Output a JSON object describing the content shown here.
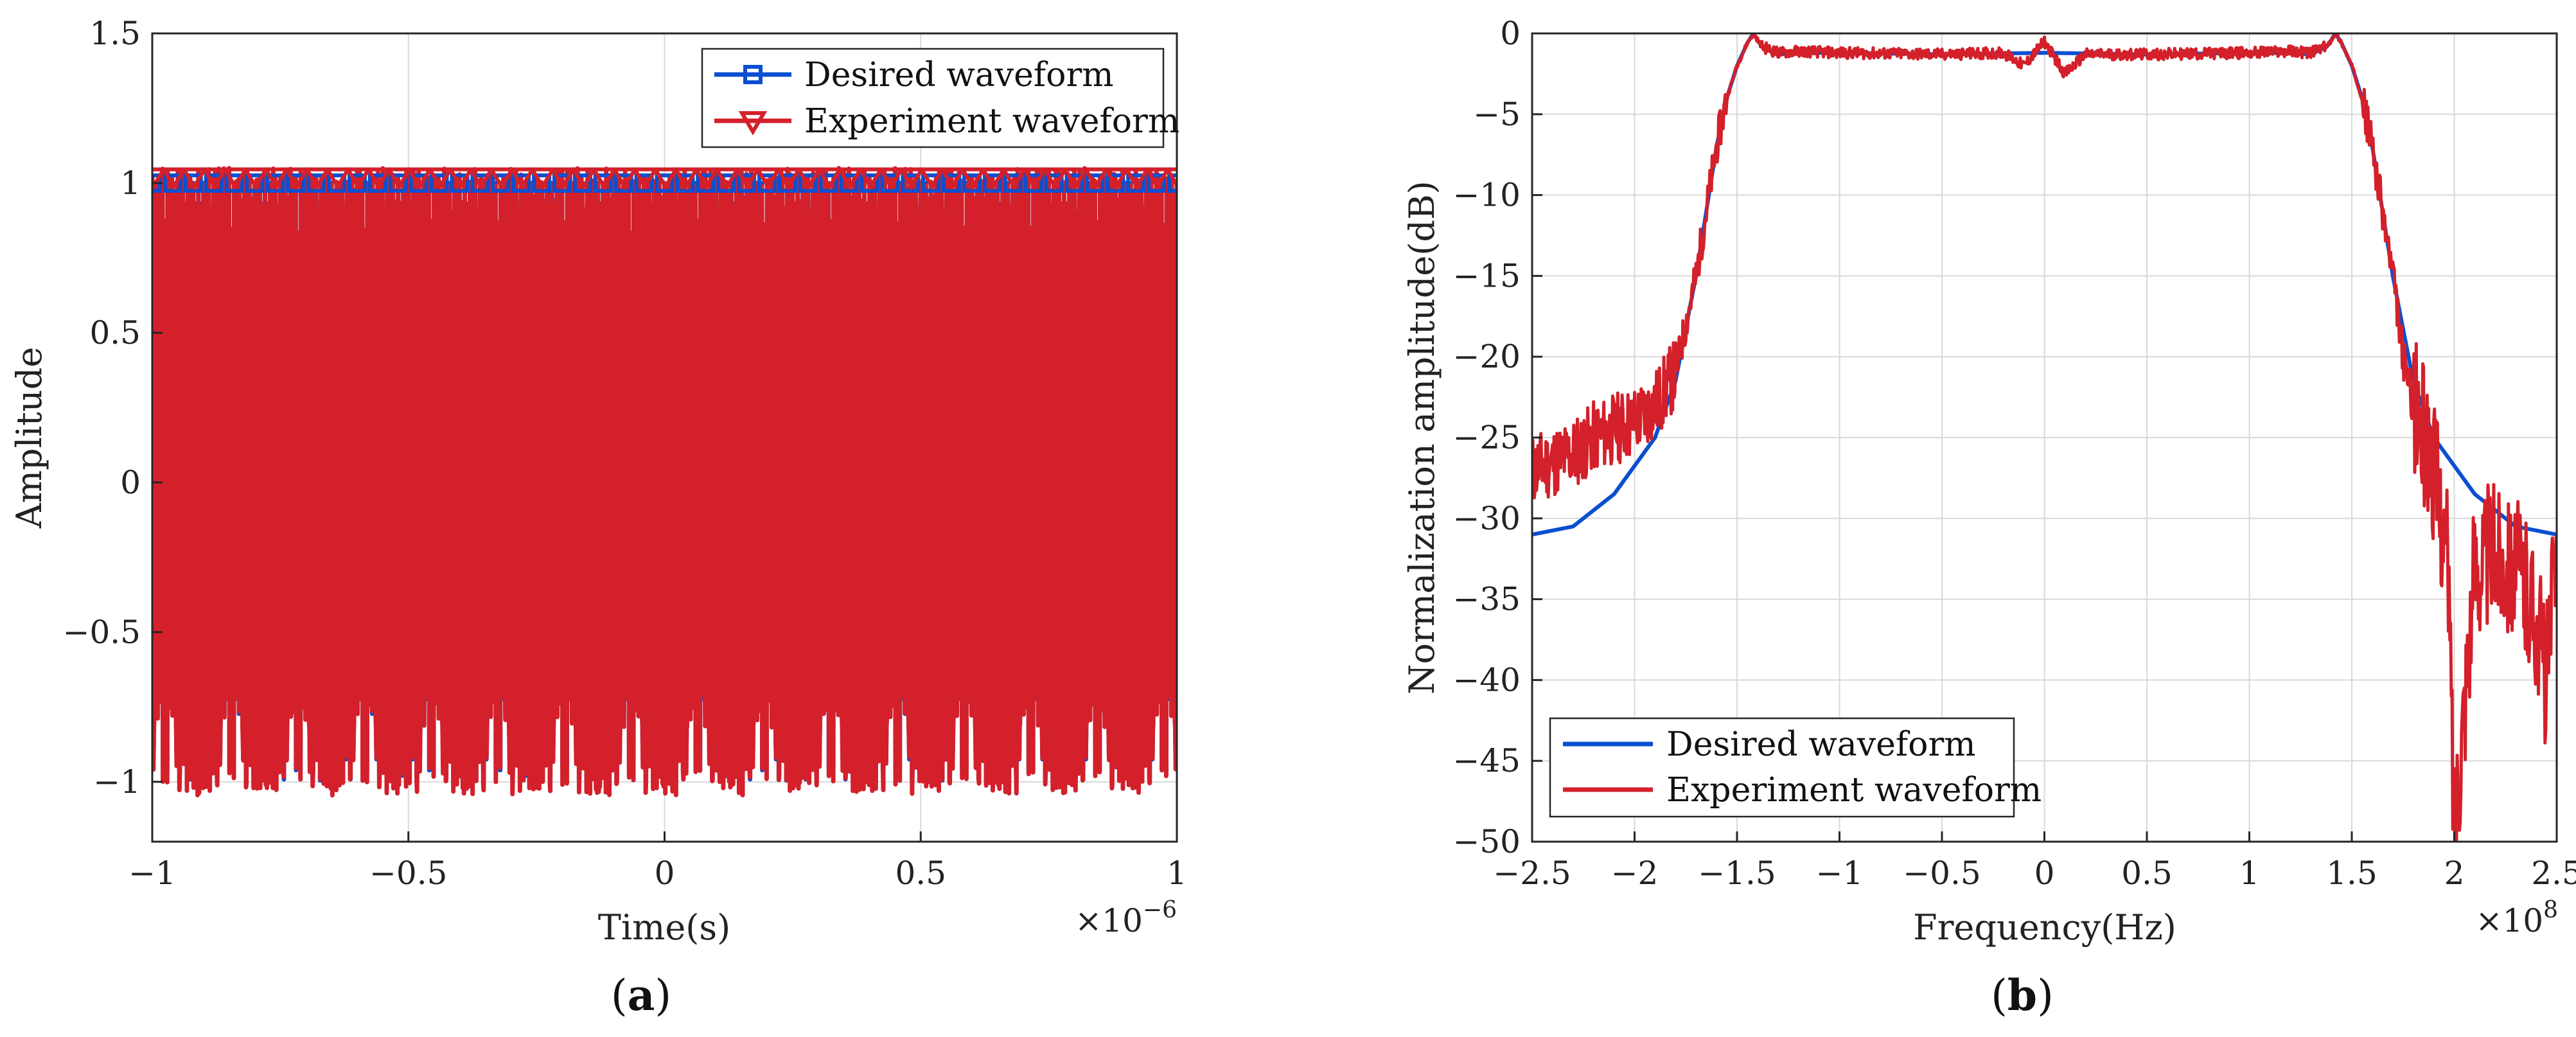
{
  "colors": {
    "desired": "#0a4fd0",
    "experiment": "#d3202a"
  },
  "chart_data": [
    {
      "type": "line",
      "panel_label_prefix": "(",
      "panel_label_letter": "a",
      "panel_label_suffix": ")",
      "title": "",
      "xlabel": "Time(s)",
      "ylabel": "Amplitude",
      "x_exponent_base": "×10",
      "x_exponent_power": "−6",
      "xlim": [
        -1,
        1
      ],
      "ylim": [
        -1.2,
        1.5
      ],
      "x_ticks": [
        -1,
        -0.5,
        0,
        0.5,
        1
      ],
      "x_tick_labels": [
        "−1",
        "−0.5",
        "0",
        "0.5",
        "1"
      ],
      "y_ticks": [
        -1,
        -0.5,
        0,
        0.5,
        1,
        1.5
      ],
      "y_tick_labels": [
        "−1",
        "−0.5",
        "0",
        "0.5",
        "1",
        "1.5"
      ],
      "grid": true,
      "legend_position": "top-right",
      "signal": "linear FM chirp, instantaneous frequency 0 at t=0 rising to about 1.5e8 Hz at |t|=1e-6 s",
      "series": [
        {
          "name": "Desired waveform",
          "color": "#0a4fd0",
          "marker": "square",
          "amplitude": 1.0
        },
        {
          "name": "Experiment waveform",
          "color": "#d3202a",
          "marker": "triangle-down",
          "amplitude": 1.02
        }
      ]
    },
    {
      "type": "line",
      "panel_label_prefix": "(",
      "panel_label_letter": "b",
      "panel_label_suffix": ")",
      "title": "",
      "xlabel": "Frequency(Hz)",
      "ylabel": "Normalization amplitude(dB)",
      "x_exponent_base": "×10",
      "x_exponent_power": "8",
      "xlim": [
        -2.5,
        2.5
      ],
      "ylim": [
        -50,
        0
      ],
      "x_ticks": [
        -2.5,
        -2,
        -1.5,
        -1,
        -0.5,
        0,
        0.5,
        1,
        1.5,
        2,
        2.5
      ],
      "x_tick_labels": [
        "−2.5",
        "−2",
        "−1.5",
        "−1",
        "−0.5",
        "0",
        "0.5",
        "1",
        "1.5",
        "2",
        "2.5"
      ],
      "y_ticks": [
        0,
        -5,
        -10,
        -15,
        -20,
        -25,
        -30,
        -35,
        -40,
        -45,
        -50
      ],
      "y_tick_labels": [
        "0",
        "−5",
        "−10",
        "−15",
        "−20",
        "−25",
        "−30",
        "−35",
        "−40",
        "−45",
        "−50"
      ],
      "grid": true,
      "legend_position": "bottom-left",
      "series": [
        {
          "name": "Desired waveform",
          "color": "#0a4fd0",
          "x": [
            -2.5,
            -2.3,
            -2.1,
            -1.9,
            -1.8,
            -1.7,
            -1.6,
            -1.55,
            -1.5,
            -1.45,
            -1.42,
            -1.38,
            -1.3,
            -1.2,
            -1.0,
            -0.5,
            0,
            0.5,
            1.0,
            1.2,
            1.3,
            1.38,
            1.42,
            1.45,
            1.5,
            1.55,
            1.6,
            1.7,
            1.8,
            1.9,
            2.1,
            2.3,
            2.5
          ],
          "y": [
            -31,
            -30.5,
            -28.5,
            -25,
            -21.5,
            -15,
            -7,
            -4,
            -2,
            -0.6,
            0,
            -0.8,
            -1.3,
            -1.2,
            -1.2,
            -1.3,
            -1.2,
            -1.3,
            -1.2,
            -1.2,
            -1.3,
            -0.8,
            0,
            -0.6,
            -2,
            -4,
            -7,
            -15,
            -21.5,
            -25,
            -28.5,
            -30.5,
            -31
          ]
        },
        {
          "name": "Experiment waveform",
          "color": "#d3202a",
          "x": [
            -2.5,
            -2.4,
            -2.3,
            -2.2,
            -2.1,
            -2.0,
            -1.9,
            -1.8,
            -1.7,
            -1.6,
            -1.55,
            -1.5,
            -1.45,
            -1.42,
            -1.38,
            -1.3,
            -1.2,
            -1.0,
            -0.5,
            -0.2,
            -0.1,
            0,
            0.1,
            0.2,
            0.5,
            1.0,
            1.2,
            1.3,
            1.38,
            1.42,
            1.45,
            1.5,
            1.55,
            1.6,
            1.7,
            1.75,
            1.8,
            1.9,
            1.95,
            1.97,
            2.0,
            2.1,
            2.2,
            2.3,
            2.4,
            2.45,
            2.5
          ],
          "y": [
            -27,
            -26.5,
            -26,
            -25,
            -24.5,
            -24,
            -23,
            -21,
            -15,
            -7,
            -4,
            -2,
            -0.6,
            0,
            -0.8,
            -1.2,
            -1.1,
            -1.2,
            -1.3,
            -1.2,
            -2,
            -0.5,
            -2.5,
            -1.3,
            -1.3,
            -1.2,
            -1.1,
            -1.2,
            -0.8,
            0,
            -0.6,
            -2,
            -4,
            -7,
            -15,
            -20,
            -23,
            -27,
            -31,
            -33,
            -49,
            -33,
            -32,
            -33,
            -36,
            -40,
            -32
          ]
        }
      ]
    }
  ]
}
